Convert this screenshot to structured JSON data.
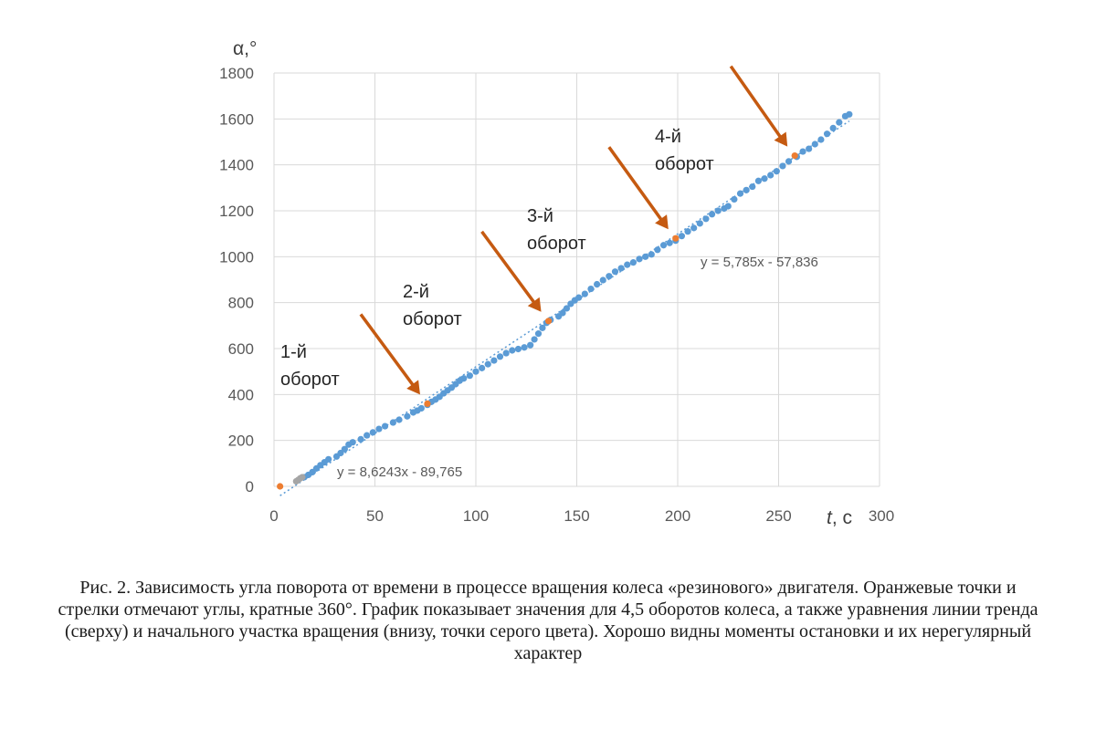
{
  "chart_data": {
    "type": "scatter",
    "title": "",
    "xlabel_italic": "t",
    "xlabel_unit": ", с",
    "ylabel": "α,°",
    "xlim": [
      0,
      300
    ],
    "ylim": [
      0,
      1800
    ],
    "x_ticks": [
      "0",
      "50",
      "100",
      "150",
      "200",
      "250",
      "300"
    ],
    "y_ticks": [
      "0",
      "200",
      "400",
      "600",
      "800",
      "1000",
      "1200",
      "1400",
      "1600",
      "1800"
    ],
    "grid": true,
    "colors": {
      "blue": "#5b9bd5",
      "gray": "#a5a5a5",
      "orange": "#ed7d31",
      "arrow": "#c55a11",
      "trend": "#5b9bd5"
    },
    "series": [
      {
        "color": "blue",
        "points": [
          [
            15,
            40
          ],
          [
            17,
            50
          ],
          [
            19,
            62
          ],
          [
            21,
            78
          ],
          [
            23,
            92
          ],
          [
            25,
            105
          ],
          [
            27,
            118
          ],
          [
            31,
            130
          ],
          [
            33,
            145
          ],
          [
            35,
            162
          ],
          [
            37,
            182
          ],
          [
            39,
            192
          ],
          [
            43,
            205
          ],
          [
            46,
            222
          ],
          [
            49,
            235
          ],
          [
            52,
            250
          ],
          [
            55,
            262
          ],
          [
            59,
            278
          ],
          [
            62,
            290
          ],
          [
            66,
            305
          ],
          [
            69,
            322
          ],
          [
            71,
            330
          ],
          [
            73,
            340
          ],
          [
            76,
            355
          ],
          [
            78,
            368
          ],
          [
            80,
            378
          ],
          [
            82,
            390
          ],
          [
            84,
            405
          ],
          [
            86,
            418
          ],
          [
            88,
            430
          ],
          [
            90,
            445
          ],
          [
            92,
            460
          ],
          [
            94,
            470
          ],
          [
            97,
            482
          ],
          [
            100,
            500
          ],
          [
            103,
            515
          ],
          [
            106,
            532
          ],
          [
            109,
            548
          ],
          [
            112,
            565
          ],
          [
            115,
            580
          ],
          [
            118,
            592
          ],
          [
            121,
            598
          ],
          [
            124,
            605
          ],
          [
            127,
            615
          ],
          [
            129,
            640
          ],
          [
            131,
            665
          ],
          [
            133,
            690
          ],
          [
            135,
            712
          ],
          [
            137,
            725
          ],
          [
            141,
            740
          ],
          [
            143,
            755
          ],
          [
            145,
            775
          ],
          [
            147,
            795
          ],
          [
            149,
            810
          ],
          [
            151,
            822
          ],
          [
            154,
            838
          ],
          [
            157,
            860
          ],
          [
            160,
            880
          ],
          [
            163,
            898
          ],
          [
            166,
            915
          ],
          [
            169,
            935
          ],
          [
            172,
            950
          ],
          [
            175,
            965
          ],
          [
            178,
            975
          ],
          [
            181,
            990
          ],
          [
            184,
            1000
          ],
          [
            187,
            1010
          ],
          [
            190,
            1030
          ],
          [
            193,
            1050
          ],
          [
            196,
            1060
          ],
          [
            199,
            1070
          ],
          [
            202,
            1090
          ],
          [
            205,
            1110
          ],
          [
            208,
            1125
          ],
          [
            211,
            1145
          ],
          [
            214,
            1165
          ],
          [
            217,
            1185
          ],
          [
            220,
            1200
          ],
          [
            223,
            1210
          ],
          [
            225,
            1220
          ],
          [
            228,
            1250
          ],
          [
            231,
            1275
          ],
          [
            234,
            1290
          ],
          [
            237,
            1305
          ],
          [
            240,
            1330
          ],
          [
            243,
            1340
          ],
          [
            246,
            1355
          ],
          [
            249,
            1372
          ],
          [
            252,
            1395
          ],
          [
            255,
            1415
          ],
          [
            259,
            1435
          ],
          [
            262,
            1458
          ],
          [
            265,
            1470
          ],
          [
            268,
            1490
          ],
          [
            271,
            1510
          ],
          [
            274,
            1535
          ],
          [
            277,
            1560
          ],
          [
            280,
            1585
          ],
          [
            283,
            1612
          ],
          [
            285,
            1620
          ]
        ]
      },
      {
        "color": "gray",
        "points": [
          [
            11,
            22
          ],
          [
            12,
            28
          ],
          [
            13,
            35
          ],
          [
            14,
            40
          ]
        ]
      },
      {
        "color": "orange",
        "points": [
          [
            3,
            0
          ],
          [
            76,
            360
          ],
          [
            136,
            720
          ],
          [
            199,
            1080
          ],
          [
            258,
            1440
          ]
        ]
      }
    ],
    "trendlines": [
      {
        "slope": 5.785,
        "intercept": -57.836,
        "x_range": [
          3,
          285
        ]
      }
    ],
    "annotations": [
      {
        "lines": [
          "1-й",
          "оборот"
        ]
      },
      {
        "lines": [
          "2-й",
          "оборот"
        ]
      },
      {
        "lines": [
          "3-й",
          "оборот"
        ]
      },
      {
        "lines": [
          "4-й",
          "оборот"
        ]
      }
    ],
    "arrows_to_points": [
      [
        76,
        360
      ],
      [
        136,
        720
      ],
      [
        199,
        1080
      ],
      [
        258,
        1440
      ]
    ],
    "equations": [
      "y = 5,785x - 57,836",
      "y = 8,6243x - 89,765"
    ]
  },
  "caption": "Рис. 2. Зависимость угла поворота от времени в процессе вращения колеса «резинового» двигателя. Оранжевые точки и стрелки отмечают углы, кратные 360°. График показывает значения для 4,5 оборотов колеса, а также уравнения линии тренда (сверху) и начального участка вращения (внизу, точки серого цвета). Хорошо видны моменты остановки и их нерегулярный характер"
}
